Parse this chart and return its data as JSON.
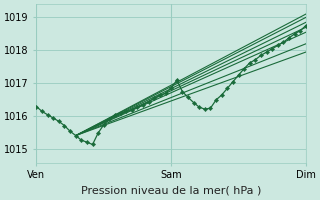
{
  "title": "",
  "xlabel": "Pression niveau de la mer( hPa )",
  "ylabel": "",
  "bg_color": "#cce8e0",
  "grid_color": "#99ccc0",
  "line_color": "#1a6b3a",
  "marker_color": "#1a6b3a",
  "xlim": [
    0,
    48
  ],
  "ylim": [
    1014.6,
    1019.4
  ],
  "yticks": [
    1015,
    1016,
    1017,
    1018,
    1019
  ],
  "xtick_positions": [
    0,
    24,
    48
  ],
  "xtick_labels": [
    "Ven",
    "Sam",
    "Dim"
  ],
  "vlines": [
    0,
    24,
    48
  ],
  "observed_x": [
    0,
    1,
    2,
    3,
    4,
    5,
    6,
    7,
    8,
    9,
    10,
    11,
    12,
    13,
    14,
    15,
    16,
    17,
    18,
    19,
    20,
    21,
    22,
    23,
    24,
    25,
    26,
    27,
    28,
    29,
    30,
    31,
    32,
    33,
    34,
    35,
    36,
    37,
    38,
    39,
    40,
    41,
    42,
    43,
    44,
    45,
    46,
    47,
    48
  ],
  "observed_y": [
    1016.3,
    1016.15,
    1016.05,
    1015.95,
    1015.85,
    1015.72,
    1015.55,
    1015.42,
    1015.28,
    1015.22,
    1015.15,
    1015.5,
    1015.75,
    1015.92,
    1016.05,
    1016.1,
    1016.15,
    1016.2,
    1016.28,
    1016.35,
    1016.45,
    1016.55,
    1016.65,
    1016.7,
    1016.85,
    1017.1,
    1016.75,
    1016.58,
    1016.42,
    1016.28,
    1016.22,
    1016.25,
    1016.5,
    1016.65,
    1016.85,
    1017.05,
    1017.25,
    1017.45,
    1017.62,
    1017.72,
    1017.85,
    1017.95,
    1018.05,
    1018.15,
    1018.25,
    1018.38,
    1018.5,
    1018.6,
    1018.75
  ],
  "forecast_lines": [
    {
      "x": [
        7,
        48
      ],
      "y": [
        1015.42,
        1019.1
      ]
    },
    {
      "x": [
        7,
        48
      ],
      "y": [
        1015.42,
        1019.0
      ]
    },
    {
      "x": [
        7,
        48
      ],
      "y": [
        1015.42,
        1018.85
      ]
    },
    {
      "x": [
        7,
        48
      ],
      "y": [
        1015.42,
        1018.7
      ]
    },
    {
      "x": [
        7,
        48
      ],
      "y": [
        1015.42,
        1018.55
      ]
    },
    {
      "x": [
        7,
        48
      ],
      "y": [
        1015.42,
        1018.2
      ]
    },
    {
      "x": [
        7,
        48
      ],
      "y": [
        1015.42,
        1017.95
      ]
    }
  ],
  "fontsize_axis": 7,
  "fontsize_xlabel": 8
}
